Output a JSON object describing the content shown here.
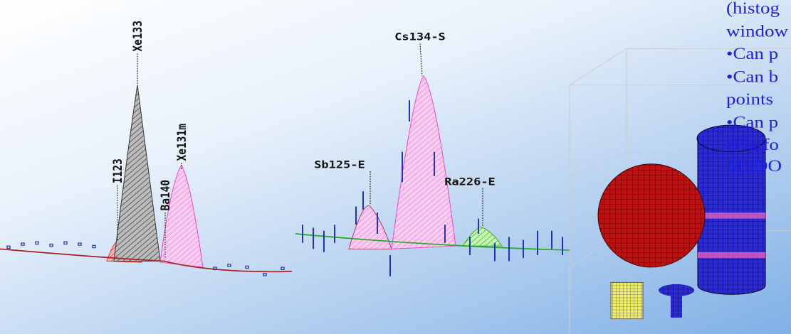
{
  "left_spectrum": {
    "peaks": [
      "I123",
      "Xe133",
      "Ba140",
      "Xe131m"
    ]
  },
  "right_spectrum": {
    "peaks": [
      "Sb125-E",
      "Cs134-S",
      "Ra226-E"
    ]
  },
  "text_lines": [
    "(histog",
    "window",
    "•Can p",
    "•Can b",
    "points",
    "•Can p",
    "•Platfo",
    "MSDO"
  ]
}
